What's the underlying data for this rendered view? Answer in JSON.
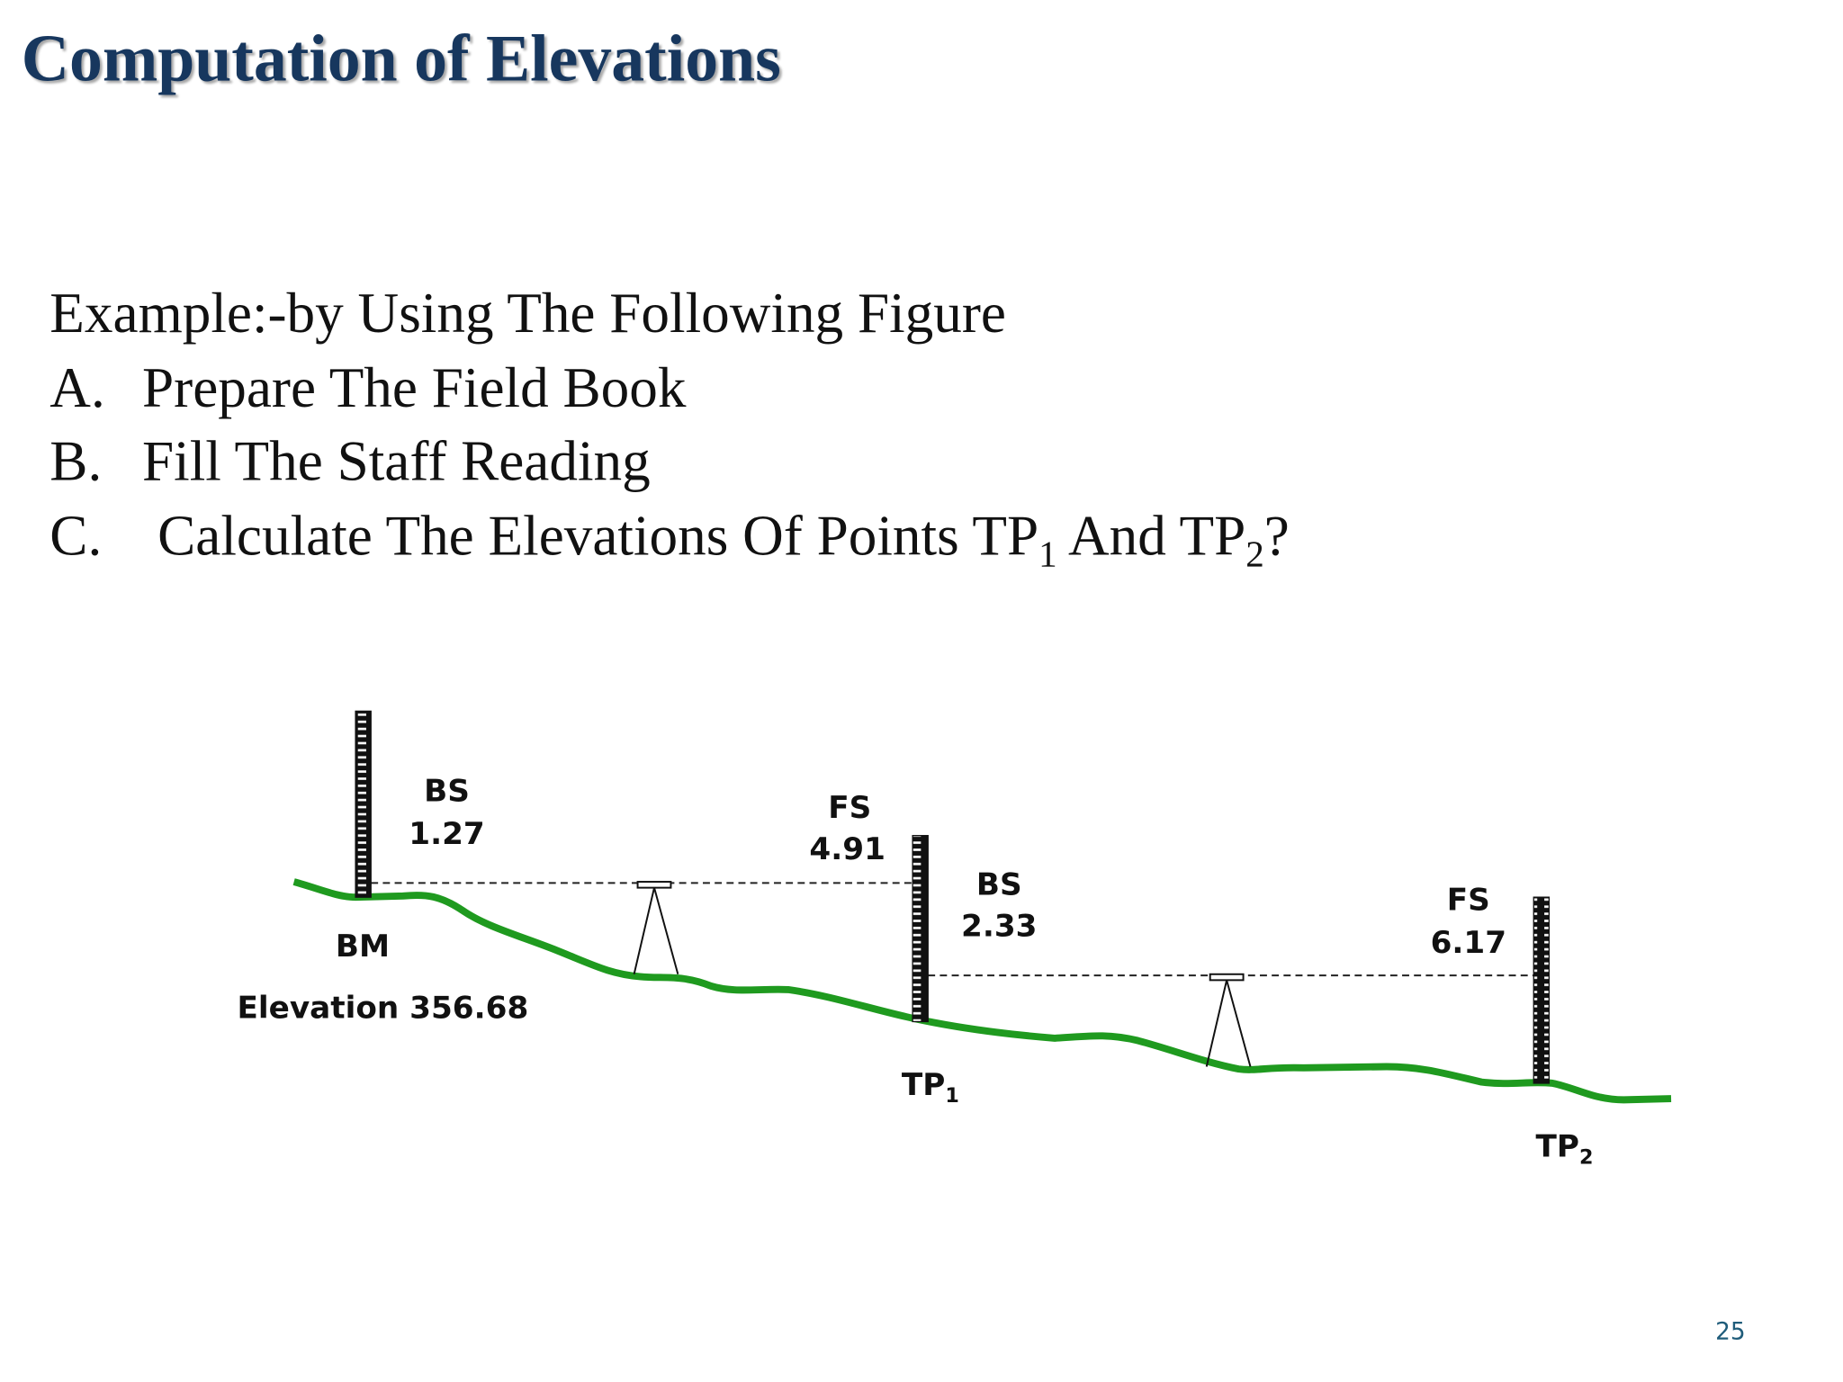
{
  "title": "Computation of Elevations",
  "intro": "Example:-by Using The Following Figure",
  "items": [
    {
      "marker": "A.",
      "text": "Prepare The Field Book"
    },
    {
      "marker": "B.",
      "text": "Fill The Staff Reading"
    },
    {
      "marker": "C.",
      "parts": [
        "Calculate The Elevations Of Points TP",
        "1",
        " And TP",
        "2",
        "?"
      ]
    }
  ],
  "figure": {
    "bm": {
      "label": "BM",
      "elevation": "Elevation 356.68"
    },
    "readings": [
      {
        "kind": "BS",
        "value": 1.27
      },
      {
        "kind": "FS",
        "value": 4.91
      },
      {
        "kind": "BS",
        "value": 2.33
      },
      {
        "kind": "FS",
        "value": 6.17
      }
    ],
    "points": [
      {
        "name": "TP",
        "sub": "1"
      },
      {
        "name": "TP",
        "sub": "2"
      }
    ]
  },
  "page_number": 25
}
